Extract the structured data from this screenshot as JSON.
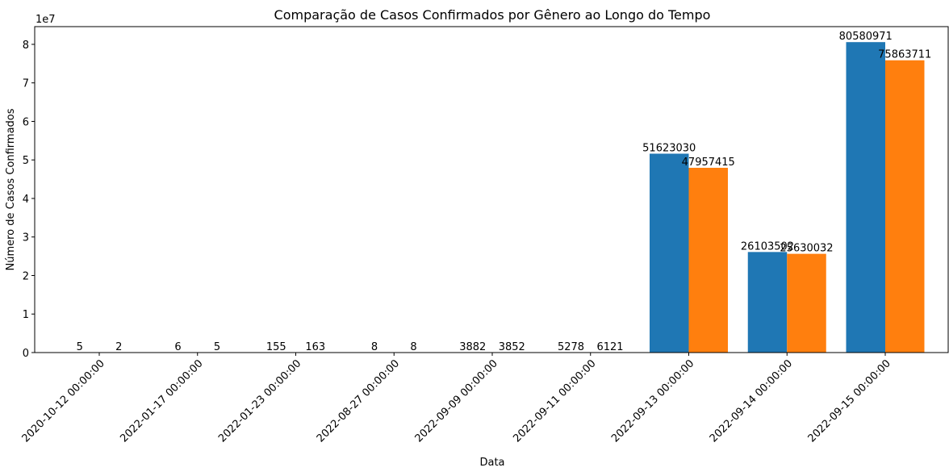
{
  "chart_data": {
    "type": "bar",
    "title": "Comparação de Casos Confirmados por Gênero ao Longo do Tempo",
    "xlabel": "Data",
    "ylabel": "Número de Casos Confirmados",
    "y_offset_label": "1e7",
    "y_scale": 10000000,
    "ylim": [
      0,
      84600000
    ],
    "yticks": [
      0,
      1,
      2,
      3,
      4,
      5,
      6,
      7,
      8
    ],
    "categories": [
      "2020-10-12 00:00:00",
      "2022-01-17 00:00:00",
      "2022-01-23 00:00:00",
      "2022-08-27 00:00:00",
      "2022-09-09 00:00:00",
      "2022-09-11 00:00:00",
      "2022-09-13 00:00:00",
      "2022-09-14 00:00:00",
      "2022-09-15 00:00:00"
    ],
    "series": [
      {
        "color": "#1f77b4",
        "values": [
          5,
          6,
          155,
          8,
          3882,
          5278,
          51623030,
          26103502,
          80580971
        ]
      },
      {
        "color": "#ff7f0e",
        "values": [
          2,
          5,
          163,
          8,
          3852,
          6121,
          47957415,
          25630032,
          75863711
        ]
      }
    ],
    "grid": false,
    "legend": "none"
  }
}
